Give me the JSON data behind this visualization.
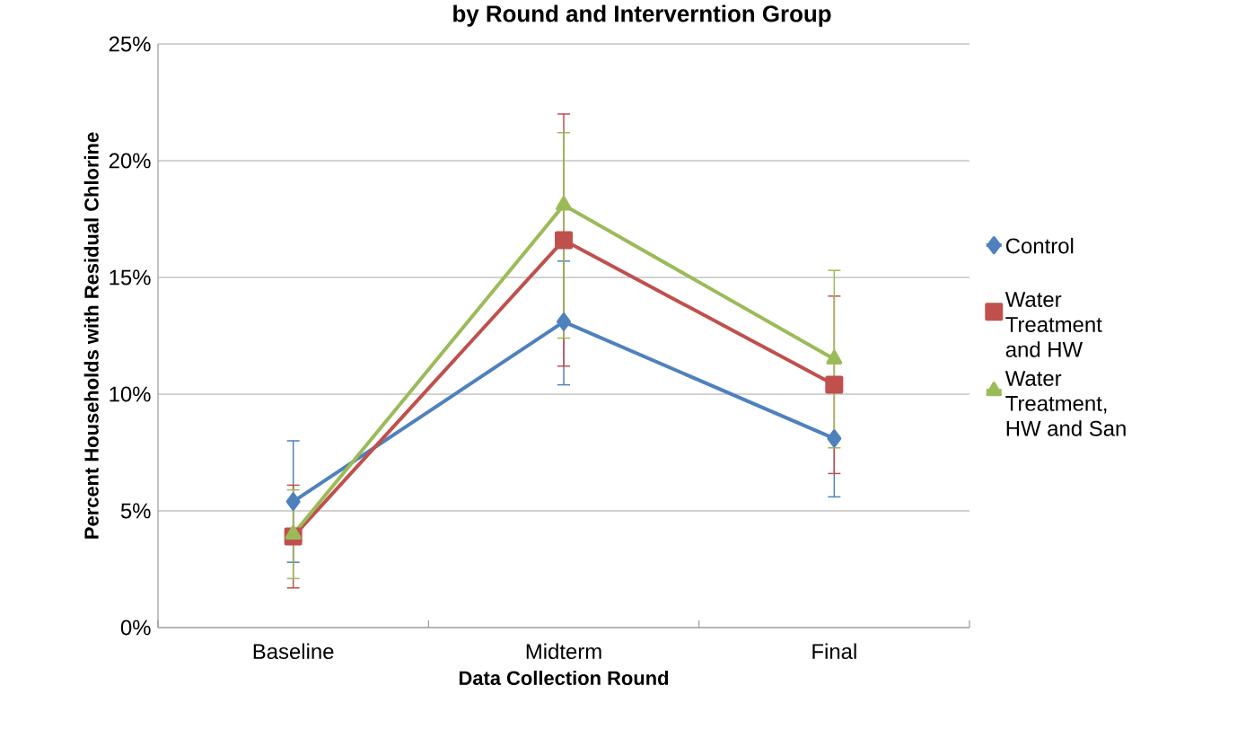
{
  "chart_data": {
    "type": "line",
    "title": "by Round and Interverntion Group",
    "xlabel": "Data Collection Round",
    "ylabel": "Percent Households with Residual Chlorine",
    "categories": [
      "Baseline",
      "Midterm",
      "Final"
    ],
    "series": [
      {
        "name": "Control",
        "color": "#4f81bd",
        "marker": "diamond",
        "values": [
          5.4,
          13.1,
          8.1
        ],
        "errors": [
          [
            2.8,
            8.0
          ],
          [
            10.4,
            15.7
          ],
          [
            5.6,
            8.1
          ]
        ]
      },
      {
        "name": "Water Treatment and HW",
        "color": "#c0504d",
        "marker": "square",
        "values": [
          3.9,
          16.6,
          10.4
        ],
        "errors": [
          [
            1.7,
            6.1
          ],
          [
            11.2,
            22.0
          ],
          [
            6.6,
            14.2
          ]
        ]
      },
      {
        "name": "Water Treatment, HW and San",
        "color": "#9bbb59",
        "marker": "triangle",
        "values": [
          4.0,
          18.1,
          11.5
        ],
        "errors": [
          [
            2.1,
            5.9
          ],
          [
            12.4,
            21.2
          ],
          [
            7.7,
            15.3
          ]
        ]
      }
    ],
    "ylim": [
      0,
      25
    ],
    "yticks": [
      {
        "value": 0,
        "label": "0%"
      },
      {
        "value": 5,
        "label": "5%"
      },
      {
        "value": 10,
        "label": "10%"
      },
      {
        "value": 15,
        "label": "15%"
      },
      {
        "value": 20,
        "label": "20%"
      },
      {
        "value": 25,
        "label": "25%"
      }
    ],
    "grid": "y",
    "legend": "right",
    "line_style": "solid"
  }
}
